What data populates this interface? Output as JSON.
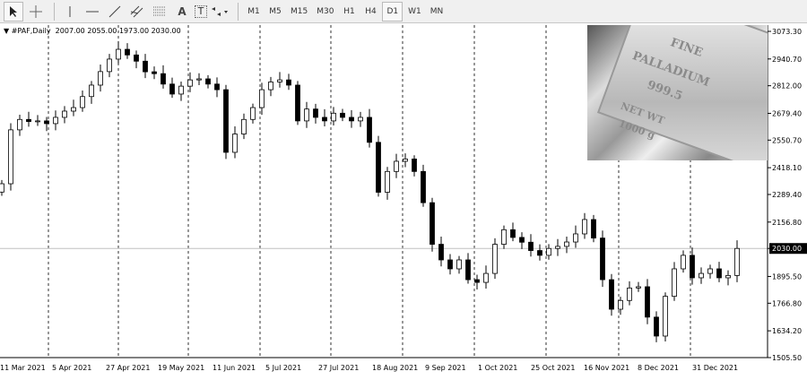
{
  "toolbar": {
    "tools": [
      "cursor-icon",
      "crosshair-icon",
      "vertical-line-icon",
      "horizontal-line-icon",
      "trendline-icon",
      "equidistant-channel-icon",
      "fibonacci-icon",
      "text-icon",
      "text-label-icon",
      "arrows-icon"
    ],
    "text_tool": "A",
    "label_tool": "T",
    "timeframes": [
      "M1",
      "M5",
      "M15",
      "M30",
      "H1",
      "H4",
      "D1",
      "W1",
      "MN"
    ],
    "selected_timeframe": "D1"
  },
  "symbol_line": {
    "symbol": "#PAF,Daily",
    "open": "2007.00",
    "high": "2055.00",
    "low": "1973.00",
    "close": "2030.00"
  },
  "photo": {
    "lines": [
      "FINE",
      "PALLADIUM",
      "999.5",
      "NET WT",
      "1000 g"
    ]
  },
  "chart_data": {
    "type": "candlestick",
    "ylim": [
      1505.5,
      3073.3
    ],
    "y_ticks": [
      "3073.30",
      "2940.70",
      "2812.00",
      "2679.40",
      "2550.70",
      "2418.10",
      "2289.40",
      "2156.80",
      "2030.00",
      "1895.50",
      "1766.80",
      "1634.20",
      "1505.50"
    ],
    "x_ticks": [
      "11 Mar 2021",
      "5 Apr 2021",
      "27 Apr 2021",
      "19 May 2021",
      "11 Jun 2021",
      "5 Jul 2021",
      "27 Jul 2021",
      "18 Aug 2021",
      "9 Sep 2021",
      "1 Oct 2021",
      "25 Oct 2021",
      "16 Nov 2021",
      "8 Dec 2021",
      "31 Dec 2021"
    ],
    "current_price": "2030.00",
    "grid": "vertical dashed",
    "closes": [
      2341,
      2600,
      2650,
      2640,
      2643,
      2630,
      2660,
      2690,
      2707,
      2760,
      2815,
      2880,
      2940,
      2987,
      2960,
      2930,
      2879,
      2870,
      2820,
      2772,
      2810,
      2840,
      2845,
      2820,
      2793,
      2492,
      2580,
      2650,
      2707,
      2793,
      2830,
      2840,
      2815,
      2643,
      2700,
      2660,
      2643,
      2680,
      2660,
      2643,
      2660,
      2540,
      2300,
      2400,
      2449,
      2460,
      2400,
      2250,
      2050,
      1975,
      1932,
      1975,
      1880,
      1867,
      1910,
      2050,
      2120,
      2083,
      2060,
      2020,
      1997,
      2030,
      2040,
      2061,
      2100,
      2169,
      2080,
      1880,
      1738,
      1780,
      1840,
      1846,
      1700,
      1609,
      1800,
      1932,
      1997,
      1889,
      1910,
      1932,
      1889,
      1900,
      2030
    ]
  }
}
